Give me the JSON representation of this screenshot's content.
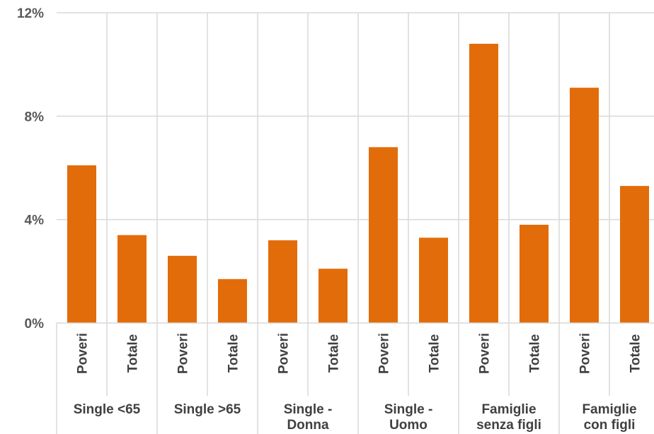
{
  "chart_data": {
    "type": "bar",
    "ylim": [
      0,
      12
    ],
    "y_ticks": [
      {
        "value": 0,
        "label": "0%"
      },
      {
        "value": 4,
        "label": "4%"
      },
      {
        "value": 8,
        "label": "8%"
      },
      {
        "value": 12,
        "label": "12%"
      }
    ],
    "grid": true,
    "bar_color": "#E36C0A",
    "grid_color": "#D9D9D9",
    "groups": [
      {
        "label_lines": [
          "Single <65"
        ],
        "bars": [
          {
            "category": "Poveri",
            "value": 6.1
          },
          {
            "category": "Totale",
            "value": 3.4
          }
        ]
      },
      {
        "label_lines": [
          "Single >65"
        ],
        "bars": [
          {
            "category": "Poveri",
            "value": 2.6
          },
          {
            "category": "Totale",
            "value": 1.7
          }
        ]
      },
      {
        "label_lines": [
          "Single -",
          "Donna"
        ],
        "bars": [
          {
            "category": "Poveri",
            "value": 3.2
          },
          {
            "category": "Totale",
            "value": 2.1
          }
        ]
      },
      {
        "label_lines": [
          "Single -",
          "Uomo"
        ],
        "bars": [
          {
            "category": "Poveri",
            "value": 6.8
          },
          {
            "category": "Totale",
            "value": 3.3
          }
        ]
      },
      {
        "label_lines": [
          "Famiglie",
          "senza figli"
        ],
        "bars": [
          {
            "category": "Poveri",
            "value": 10.8
          },
          {
            "category": "Totale",
            "value": 3.8
          }
        ]
      },
      {
        "label_lines": [
          "Famiglie",
          "con figli"
        ],
        "bars": [
          {
            "category": "Poveri",
            "value": 9.1
          },
          {
            "category": "Totale",
            "value": 5.3
          }
        ]
      }
    ]
  }
}
